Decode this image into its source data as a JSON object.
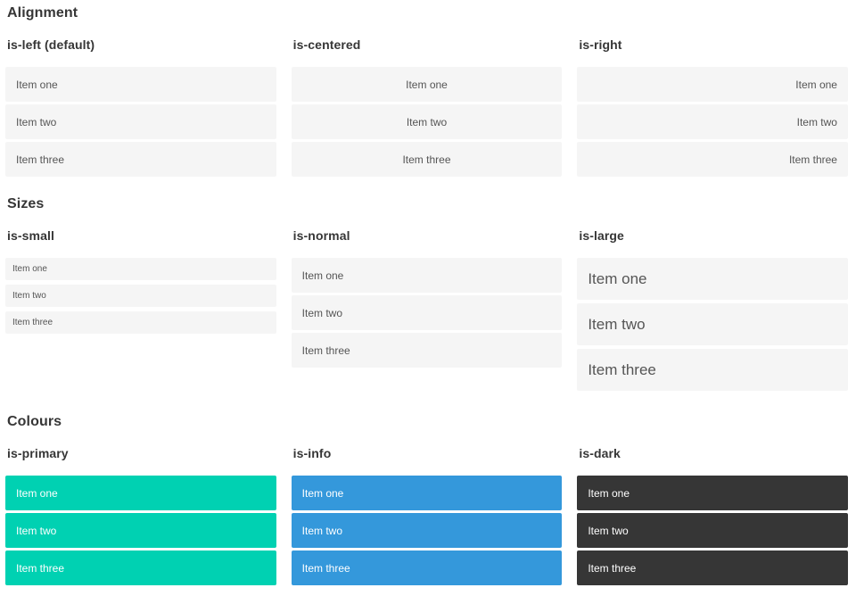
{
  "sections": [
    {
      "title": "Alignment",
      "columns": [
        {
          "heading": "is-left (default)",
          "variant": "left",
          "items": [
            "Item one",
            "Item two",
            "Item three"
          ]
        },
        {
          "heading": "is-centered",
          "variant": "centered",
          "items": [
            "Item one",
            "Item two",
            "Item three"
          ]
        },
        {
          "heading": "is-right",
          "variant": "right",
          "items": [
            "Item one",
            "Item two",
            "Item three"
          ]
        }
      ]
    },
    {
      "title": "Sizes",
      "columns": [
        {
          "heading": "is-small",
          "variant": "small",
          "items": [
            "Item one",
            "Item two",
            "Item three"
          ]
        },
        {
          "heading": "is-normal",
          "variant": "normal",
          "items": [
            "Item one",
            "Item two",
            "Item three"
          ]
        },
        {
          "heading": "is-large",
          "variant": "large",
          "items": [
            "Item one",
            "Item two",
            "Item three"
          ]
        }
      ]
    },
    {
      "title": "Colours",
      "columns": [
        {
          "heading": "is-primary",
          "variant": "primary",
          "items": [
            "Item one",
            "Item two",
            "Item three"
          ]
        },
        {
          "heading": "is-info",
          "variant": "info",
          "items": [
            "Item one",
            "Item two",
            "Item three"
          ]
        },
        {
          "heading": "is-dark",
          "variant": "dark",
          "items": [
            "Item one",
            "Item two",
            "Item three"
          ]
        }
      ]
    }
  ],
  "colors": {
    "primary": "#00d1b2",
    "info": "#3498db",
    "dark": "#363636",
    "item_background": "#f5f5f5",
    "item_text": "#555555",
    "colour_item_text": "#ffffff",
    "heading_text": "#363636",
    "page_background": "#ffffff"
  }
}
